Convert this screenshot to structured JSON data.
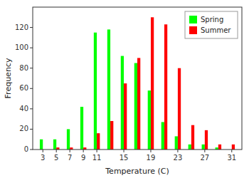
{
  "chart_data": {
    "type": "bar",
    "x": [
      3,
      5,
      7,
      9,
      11,
      13,
      15,
      17,
      19,
      21,
      23,
      25,
      27,
      29,
      31
    ],
    "series": [
      {
        "name": "Spring",
        "color": "#00FF00",
        "values": [
          10,
          10,
          20,
          42,
          115,
          118,
          92,
          85,
          58,
          27,
          13,
          5,
          5,
          2,
          0
        ]
      },
      {
        "name": "Summer",
        "color": "#FF0000",
        "values": [
          0,
          2,
          2,
          2,
          16,
          28,
          65,
          90,
          130,
          123,
          80,
          24,
          19,
          5,
          5
        ]
      }
    ],
    "xlabel": "Temperature (C)",
    "ylabel": "Frequency",
    "xlim": [
      1.5,
      32.5
    ],
    "xticks": [
      3,
      5,
      7,
      9,
      11,
      15,
      19,
      23,
      27,
      31
    ],
    "ylim": [
      0,
      140
    ],
    "yticks": [
      0,
      20,
      40,
      60,
      80,
      100,
      120
    ],
    "legend": "upper right"
  }
}
